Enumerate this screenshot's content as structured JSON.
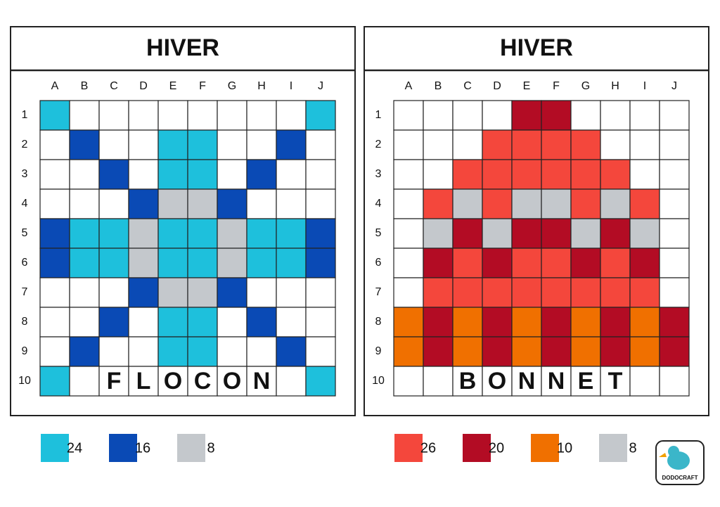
{
  "panels": [
    {
      "title": "HIVER",
      "columns": [
        "A",
        "B",
        "C",
        "D",
        "E",
        "F",
        "G",
        "H",
        "I",
        "J"
      ],
      "rows": [
        "1",
        "2",
        "3",
        "4",
        "5",
        "6",
        "7",
        "8",
        "9",
        "10"
      ],
      "grid": [
        [
          "#1ec0dc",
          "#ffffff",
          "#ffffff",
          "#ffffff",
          "#ffffff",
          "#ffffff",
          "#ffffff",
          "#ffffff",
          "#ffffff",
          "#1ec0dc"
        ],
        [
          "#ffffff",
          "#0a4ab5",
          "#ffffff",
          "#ffffff",
          "#1ec0dc",
          "#1ec0dc",
          "#ffffff",
          "#ffffff",
          "#0a4ab5",
          "#ffffff"
        ],
        [
          "#ffffff",
          "#ffffff",
          "#0a4ab5",
          "#ffffff",
          "#1ec0dc",
          "#1ec0dc",
          "#ffffff",
          "#0a4ab5",
          "#ffffff",
          "#ffffff"
        ],
        [
          "#ffffff",
          "#ffffff",
          "#ffffff",
          "#0a4ab5",
          "#c4c8cc",
          "#c4c8cc",
          "#0a4ab5",
          "#ffffff",
          "#ffffff",
          "#ffffff"
        ],
        [
          "#0a4ab5",
          "#1ec0dc",
          "#1ec0dc",
          "#c4c8cc",
          "#1ec0dc",
          "#1ec0dc",
          "#c4c8cc",
          "#1ec0dc",
          "#1ec0dc",
          "#0a4ab5"
        ],
        [
          "#0a4ab5",
          "#1ec0dc",
          "#1ec0dc",
          "#c4c8cc",
          "#1ec0dc",
          "#1ec0dc",
          "#c4c8cc",
          "#1ec0dc",
          "#1ec0dc",
          "#0a4ab5"
        ],
        [
          "#ffffff",
          "#ffffff",
          "#ffffff",
          "#0a4ab5",
          "#c4c8cc",
          "#c4c8cc",
          "#0a4ab5",
          "#ffffff",
          "#ffffff",
          "#ffffff"
        ],
        [
          "#ffffff",
          "#ffffff",
          "#0a4ab5",
          "#ffffff",
          "#1ec0dc",
          "#1ec0dc",
          "#ffffff",
          "#0a4ab5",
          "#ffffff",
          "#ffffff"
        ],
        [
          "#ffffff",
          "#0a4ab5",
          "#ffffff",
          "#ffffff",
          "#1ec0dc",
          "#1ec0dc",
          "#ffffff",
          "#ffffff",
          "#0a4ab5",
          "#ffffff"
        ],
        [
          "#1ec0dc",
          "#ffffff",
          "#ffffff",
          "#ffffff",
          "#ffffff",
          "#ffffff",
          "#ffffff",
          "#ffffff",
          "#ffffff",
          "#1ec0dc"
        ]
      ],
      "word": [
        "F",
        "L",
        "O",
        "C",
        "O",
        "N"
      ],
      "legend": [
        {
          "color": "#1ec0dc",
          "count": 24
        },
        {
          "color": "#0a4ab5",
          "count": 16
        },
        {
          "color": "#c4c8cc",
          "count": 8
        }
      ]
    },
    {
      "title": "HIVER",
      "columns": [
        "A",
        "B",
        "C",
        "D",
        "E",
        "F",
        "G",
        "H",
        "I",
        "J"
      ],
      "rows": [
        "1",
        "2",
        "3",
        "4",
        "5",
        "6",
        "7",
        "8",
        "9",
        "10"
      ],
      "grid": [
        [
          "#ffffff",
          "#ffffff",
          "#ffffff",
          "#ffffff",
          "#b30c24",
          "#b30c24",
          "#ffffff",
          "#ffffff",
          "#ffffff",
          "#ffffff"
        ],
        [
          "#ffffff",
          "#ffffff",
          "#ffffff",
          "#f4473c",
          "#f4473c",
          "#f4473c",
          "#f4473c",
          "#ffffff",
          "#ffffff",
          "#ffffff"
        ],
        [
          "#ffffff",
          "#ffffff",
          "#f4473c",
          "#f4473c",
          "#f4473c",
          "#f4473c",
          "#f4473c",
          "#f4473c",
          "#ffffff",
          "#ffffff"
        ],
        [
          "#ffffff",
          "#f4473c",
          "#c4c8cc",
          "#f4473c",
          "#c4c8cc",
          "#c4c8cc",
          "#f4473c",
          "#c4c8cc",
          "#f4473c",
          "#ffffff"
        ],
        [
          "#ffffff",
          "#c4c8cc",
          "#b30c24",
          "#c4c8cc",
          "#b30c24",
          "#b30c24",
          "#c4c8cc",
          "#b30c24",
          "#c4c8cc",
          "#ffffff"
        ],
        [
          "#ffffff",
          "#b30c24",
          "#f4473c",
          "#b30c24",
          "#f4473c",
          "#f4473c",
          "#b30c24",
          "#f4473c",
          "#b30c24",
          "#ffffff"
        ],
        [
          "#ffffff",
          "#f4473c",
          "#f4473c",
          "#f4473c",
          "#f4473c",
          "#f4473c",
          "#f4473c",
          "#f4473c",
          "#f4473c",
          "#ffffff"
        ],
        [
          "#f07000",
          "#b30c24",
          "#f07000",
          "#b30c24",
          "#f07000",
          "#b30c24",
          "#f07000",
          "#b30c24",
          "#f07000",
          "#b30c24"
        ],
        [
          "#f07000",
          "#b30c24",
          "#f07000",
          "#b30c24",
          "#f07000",
          "#b30c24",
          "#f07000",
          "#b30c24",
          "#f07000",
          "#b30c24"
        ],
        [
          "#ffffff",
          "#ffffff",
          "#ffffff",
          "#ffffff",
          "#ffffff",
          "#ffffff",
          "#ffffff",
          "#ffffff",
          "#ffffff",
          "#ffffff"
        ]
      ],
      "word": [
        "B",
        "O",
        "N",
        "N",
        "E",
        "T"
      ],
      "legend": [
        {
          "color": "#f4473c",
          "count": 26
        },
        {
          "color": "#b30c24",
          "count": 20
        },
        {
          "color": "#f07000",
          "count": 10
        },
        {
          "color": "#c4c8cc",
          "count": 8
        }
      ]
    }
  ],
  "logo": "DODOCRAFT"
}
